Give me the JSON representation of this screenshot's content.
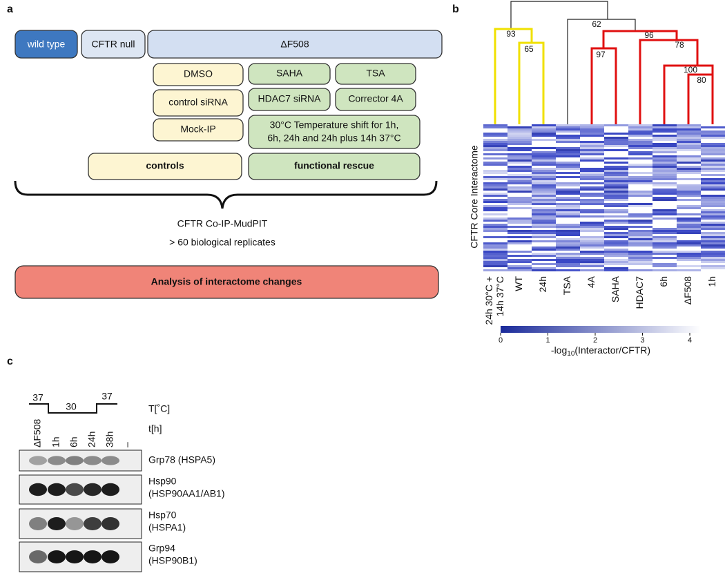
{
  "panel_a": {
    "label": "a",
    "top_boxes": [
      "wild type",
      "CFTR null",
      "ΔF508"
    ],
    "control_boxes": [
      "DMSO",
      "control siRNA",
      "Mock-IP"
    ],
    "rescue_boxes": [
      "SAHA",
      "TSA",
      "HDAC7 siRNA",
      "Corrector 4A"
    ],
    "temperature_box": [
      "30°C Temperature shift for 1h,",
      "6h, 24h and 24h plus 14h 37°C"
    ],
    "controls": "controls",
    "functional_rescue": "functional rescue",
    "method": "CFTR Co-IP-MudPIT",
    "replicates": "> 60 biological replicates",
    "analysis": "Analysis of interactome changes"
  },
  "panel_b": {
    "label": "b",
    "node_labels": [
      "93",
      "65",
      "62",
      "96",
      "97",
      "78",
      "100",
      "80"
    ],
    "y_label": "CFTR Core Interactome",
    "columns": [
      [
        "24h 30°C +",
        "14h 37°C"
      ],
      [
        "WT"
      ],
      [
        "24h"
      ],
      [
        "TSA"
      ],
      [
        "4A"
      ],
      [
        "SAHA"
      ],
      [
        "HDAC7"
      ],
      [
        "6h"
      ],
      [
        "ΔF508"
      ],
      [
        "1h"
      ]
    ],
    "colorbar": {
      "ticks": [
        "0",
        "1",
        "2",
        "3",
        "4"
      ],
      "label": "-log",
      "label_sub": "10",
      "label_rest": "(Interactor/CFTR)"
    }
  },
  "panel_c": {
    "label": "c",
    "temperatures": [
      "37",
      "30",
      "37"
    ],
    "temperature_axis": "T[˚C]",
    "time_axis": "t[h]",
    "lanes": [
      "ΔF508",
      "1h",
      "6h",
      "24h",
      "38h",
      "–"
    ],
    "blots": [
      [
        "Grp78 (HSPA5)"
      ],
      [
        "Hsp90",
        "(HSP90AA1/AB1)"
      ],
      [
        "Hsp70",
        "(HSPA1)"
      ],
      [
        "Grp94",
        "(HSP90B1)"
      ]
    ]
  }
}
